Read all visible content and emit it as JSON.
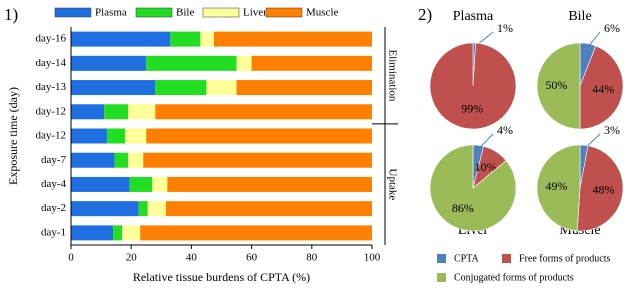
{
  "chart_data": [
    {
      "type": "bar",
      "orientation": "horizontal",
      "stacked": true,
      "label": "1)",
      "xlabel": "Relative tissue burdens of CPTA (%)",
      "ylabel": "Exposure time (day)",
      "categories": [
        "day-16",
        "day-14",
        "day-13",
        "day-12",
        "day-12",
        "day-7",
        "day-4",
        "day-2",
        "day-1"
      ],
      "series": [
        {
          "name": "Plasma",
          "color": "#1f6fe0",
          "values": [
            33,
            25,
            28,
            11,
            12,
            14.5,
            19.5,
            22.5,
            14
          ]
        },
        {
          "name": "Bile",
          "color": "#22dd22",
          "values": [
            10,
            30,
            17,
            8,
            6,
            4.5,
            7.5,
            3,
            3
          ]
        },
        {
          "name": "Liver",
          "color": "#ffff99",
          "values": [
            4.5,
            5,
            10,
            9,
            7,
            5,
            5,
            6,
            6
          ]
        },
        {
          "name": "Muscle",
          "color": "#ff8000",
          "values": [
            52.5,
            40,
            45,
            72,
            75,
            76,
            68,
            68.5,
            77
          ]
        }
      ],
      "xlim": [
        0,
        100
      ],
      "xticks": [
        0,
        20,
        40,
        60,
        80,
        100
      ],
      "annotations": [
        "Elimination",
        "Uptake"
      ]
    },
    {
      "type": "pie",
      "label": "2)",
      "categories": [
        "CPTA",
        "Free forms of products",
        "Conjugated forms of products"
      ],
      "colors": [
        "#4f81bd",
        "#c0504d",
        "#9bbb59"
      ],
      "pies": [
        {
          "title": "Plasma",
          "values": [
            1,
            99,
            0
          ],
          "value_labels": [
            "1%",
            "99%",
            null
          ]
        },
        {
          "title": "Bile",
          "values": [
            6,
            44,
            50
          ],
          "value_labels": [
            "6%",
            "44%",
            "50%"
          ]
        },
        {
          "title": "Liver",
          "values": [
            4,
            10,
            86
          ],
          "value_labels": [
            "4%",
            "10%",
            "86%"
          ]
        },
        {
          "title": "Muscle",
          "values": [
            3,
            48,
            49
          ],
          "value_labels": [
            "3%",
            "48%",
            "49%"
          ]
        }
      ]
    }
  ]
}
